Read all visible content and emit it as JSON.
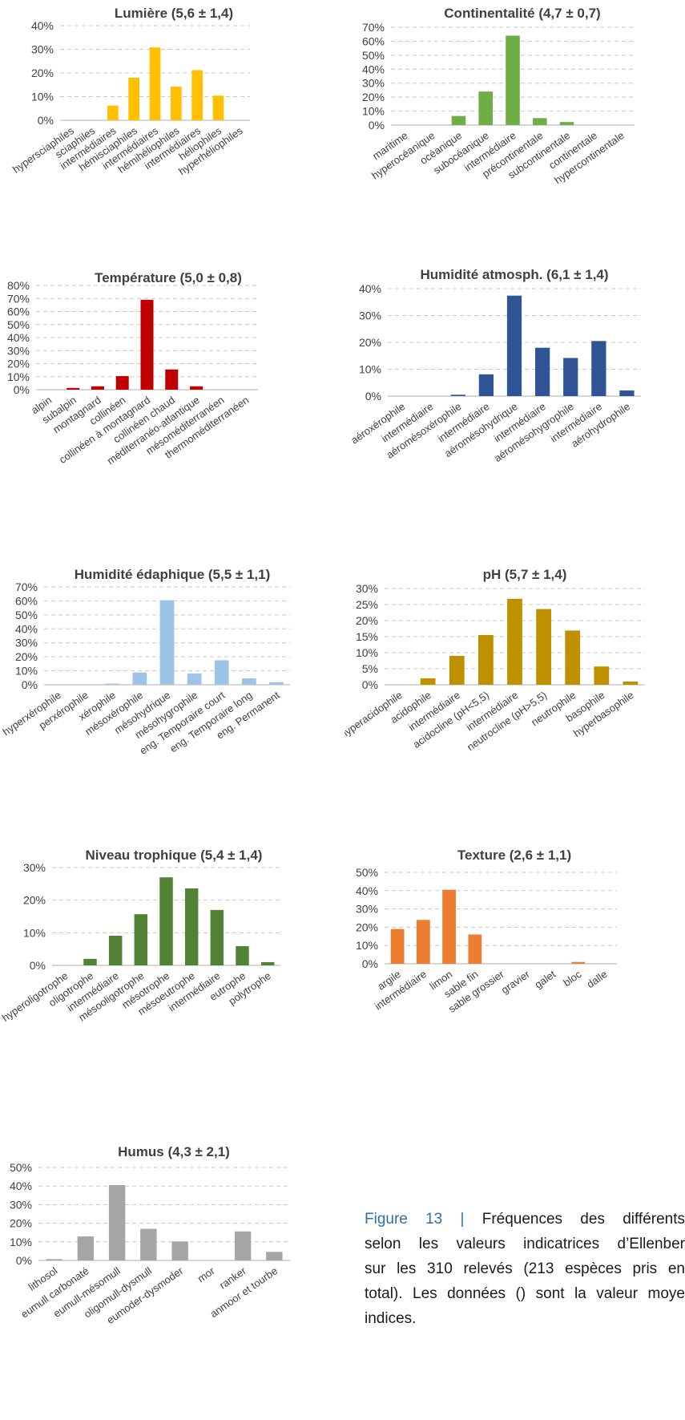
{
  "chart_data": [
    {
      "type": "bar",
      "title": "Lumière (5,6 ± 1,4)",
      "color": "#FFC000",
      "ylim": [
        0,
        40
      ],
      "yticks": [
        "0%",
        "10%",
        "20%",
        "30%",
        "40%"
      ],
      "categories": [
        "hypersciaphiles",
        "sciaphiles",
        "intermédiaires",
        "hémisciaphiles",
        "intermédiaires",
        "hémihéliophiles",
        "intermédiaires",
        "héliophiles",
        "hyperhéliophiles"
      ],
      "values": [
        0,
        0,
        6.2,
        18,
        30.8,
        14.2,
        21.2,
        10.4,
        0
      ],
      "grid": true
    },
    {
      "type": "bar",
      "title": "Continentalité (4,7 ± 0,7)",
      "color": "#70AD47",
      "ylim": [
        0,
        70
      ],
      "yticks": [
        "0%",
        "10%",
        "20%",
        "30%",
        "40%",
        "50%",
        "60%",
        "70%"
      ],
      "categories": [
        "maritime",
        "hyperocéanique",
        "océanique",
        "subocéanique",
        "intermédiaire",
        "précontinentale",
        "subcontinentale",
        "continentale",
        "hypercontinentale"
      ],
      "values": [
        0,
        0,
        6.5,
        24,
        64,
        5,
        2.2,
        0,
        0
      ],
      "grid": true
    },
    {
      "type": "bar",
      "title": "Température (5,0 ± 0,8)",
      "color": "#C00000",
      "ylim": [
        0,
        80
      ],
      "yticks": [
        "0%",
        "10%",
        "20%",
        "30%",
        "40%",
        "50%",
        "60%",
        "70%",
        "80%"
      ],
      "categories": [
        "alpin",
        "subalpin",
        "montagnard",
        "collinéen",
        "collinéen à montagnard",
        "collinéen chaud",
        "méditerranéo-atlantique",
        "mésoméditerranéen",
        "thermoméditerranéen"
      ],
      "values": [
        0,
        1.3,
        2.6,
        10.4,
        69,
        15.5,
        2.6,
        0,
        0
      ],
      "grid": true
    },
    {
      "type": "bar",
      "title": "Humidité atmosph. (6,1 ± 1,4)",
      "color": "#2F5597",
      "ylim": [
        0,
        40
      ],
      "yticks": [
        "0%",
        "10%",
        "20%",
        "30%",
        "40%"
      ],
      "categories": [
        "aéroxérophile",
        "intermédiaire",
        "aéromésoxérophile",
        "intermédiaire",
        "aéromésohydrique",
        "intermédiaire",
        "aéromésohygrophile",
        "intermédiaire",
        "aérohydrophile"
      ],
      "values": [
        0,
        0,
        0.5,
        8.1,
        37.4,
        18,
        14.2,
        20.5,
        2.1
      ],
      "grid": true
    },
    {
      "type": "bar",
      "title": "Humidité édaphique (5,5 ± 1,1)",
      "color": "#9DC3E6",
      "ylim": [
        0,
        70
      ],
      "yticks": [
        "0%",
        "10%",
        "20%",
        "30%",
        "40%",
        "50%",
        "60%",
        "70%"
      ],
      "categories": [
        "hyperxérophile",
        "perxérophile",
        "xérophile",
        "mésoxérophile",
        "mésohydrique",
        "mésohygrophile",
        "eng. Temporaire court",
        "eng. Temporaire long",
        "eng. Permanent"
      ],
      "values": [
        0,
        0,
        0.8,
        8.8,
        60.5,
        8,
        17.5,
        4.6,
        1.8
      ],
      "grid": true
    },
    {
      "type": "bar",
      "title": "pH (5,7 ± 1,4)",
      "color": "#BF9000",
      "ylim": [
        0,
        30
      ],
      "yticks": [
        "0%",
        "5%",
        "10%",
        "15%",
        "20%",
        "25%",
        "30%"
      ],
      "categories": [
        "hyperacidophile",
        "acidophile",
        "intermédiaire",
        "acidocline (pH<5,5)",
        "intermédiaire",
        "neutrocline (pH>5,5)",
        "neutrophile",
        "basophile",
        "hyperbasophile"
      ],
      "values": [
        0,
        2,
        9,
        15.5,
        26.8,
        23.6,
        16.9,
        5.7,
        1
      ],
      "grid": true
    },
    {
      "type": "bar",
      "title": "Niveau trophique (5,4 ± 1,4)",
      "color": "#548235",
      "ylim": [
        0,
        30
      ],
      "yticks": [
        "0%",
        "10%",
        "20%",
        "30%"
      ],
      "categories": [
        "hyperoligotrophe",
        "oligotrophe",
        "intermédiaire",
        "mésooligotrophe",
        "mésotrophe",
        "mésoeutrophe",
        "intermédiaire",
        "eutrophe",
        "polytrophe"
      ],
      "values": [
        0,
        2,
        9.1,
        15.7,
        27,
        23.6,
        17,
        5.9,
        1
      ],
      "grid": true
    },
    {
      "type": "bar",
      "title": "Texture (2,6 ± 1,1)",
      "color": "#ED7D31",
      "ylim": [
        0,
        50
      ],
      "yticks": [
        "0%",
        "10%",
        "20%",
        "30%",
        "40%",
        "50%"
      ],
      "categories": [
        "argile",
        "intermédiaire",
        "limon",
        "sable fin",
        "sable grossier",
        "gravier",
        "galet",
        "bloc",
        "dalle"
      ],
      "values": [
        19,
        24,
        40.5,
        16,
        0,
        0,
        0,
        1,
        0
      ],
      "grid": true
    },
    {
      "type": "bar",
      "title": "Humus (4,3 ± 2,1)",
      "color": "#A5A5A5",
      "ylim": [
        0,
        50
      ],
      "yticks": [
        "0%",
        "10%",
        "20%",
        "30%",
        "40%",
        "50%"
      ],
      "categories": [
        "lithosol",
        "eumull carbonaté",
        "eumull-mésomull",
        "oligomull-dysmull",
        "eumoder-dysmoder",
        "mor",
        "ranker",
        "anmoor et tourbe"
      ],
      "values": [
        0.7,
        12.9,
        40.5,
        17,
        10.2,
        0,
        15.6,
        4.6
      ],
      "grid": true
    }
  ],
  "caption": {
    "label": "Figure 13 |",
    "line1": "Fréquences des différents",
    "line2": "selon les valeurs indicatrices d’Ellenber",
    "line3": "sur les 310 relevés (213 espèces pris en",
    "line4": "total). Les données () sont la valeur moye",
    "line5": "indices."
  }
}
